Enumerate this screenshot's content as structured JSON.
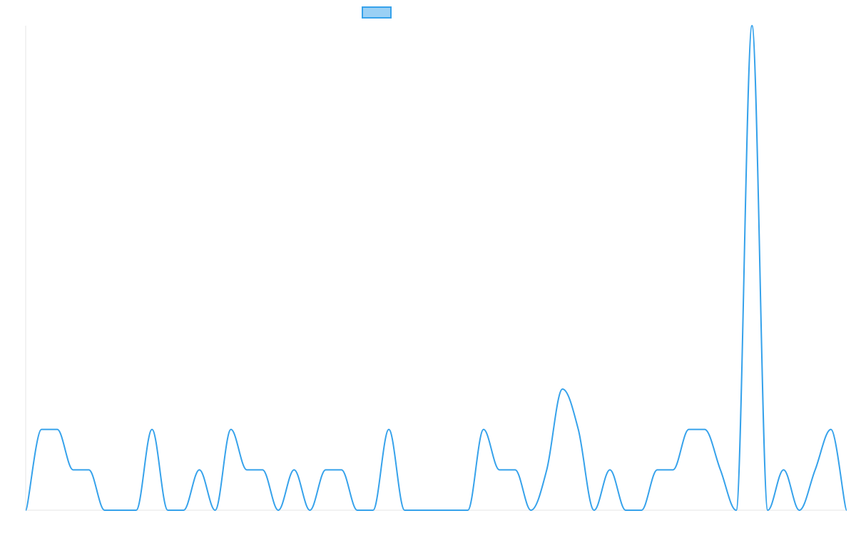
{
  "chart_data": {
    "type": "line",
    "title": "",
    "xlabel": "",
    "ylabel": "",
    "ylim": [
      0,
      6
    ],
    "grid": false,
    "legend_position": "top-center",
    "series": [
      {
        "name": "",
        "color": "#36a2eb",
        "fill": "#9ad0f5",
        "values": [
          0,
          1,
          1,
          0.5,
          0.5,
          0,
          0,
          0,
          1,
          0,
          0,
          0.5,
          0,
          1,
          0.5,
          0.5,
          0,
          0.5,
          0,
          0.5,
          0.5,
          0,
          0,
          1,
          0,
          0,
          0,
          0,
          0,
          1,
          0.5,
          0.5,
          0,
          0.5,
          1.5,
          1,
          0,
          0.5,
          0,
          0,
          0.5,
          0.5,
          1,
          1,
          0.5,
          0,
          6,
          0,
          0.5,
          0,
          0.5,
          1,
          0
        ]
      }
    ]
  }
}
